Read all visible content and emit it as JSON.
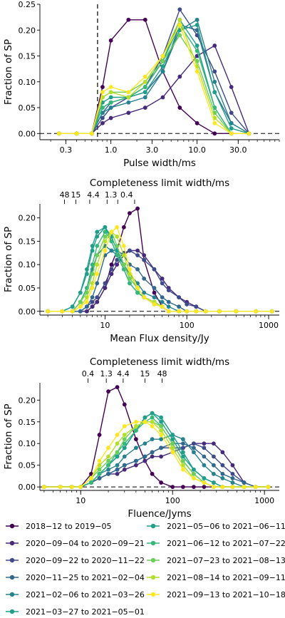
{
  "colors": [
    "#440154",
    "#472A7A",
    "#3E4A89",
    "#31688E",
    "#26828E",
    "#1F9E89",
    "#35B779",
    "#6DCD59",
    "#B4DE2C",
    "#FDE725"
  ],
  "legend": {
    "entries": [
      "2018−12 to 2019−05",
      "2020−09−04 to 2020−09−21",
      "2020−09−22 to 2020−11−22",
      "2020−11−25 to 2021−02−04",
      "2021−02−06 to 2021−03−26",
      "2021−03−27 to 2021−05−01",
      "2021−05−06 to 2021−06−11",
      "2021−06−12 to 2021−07−22",
      "2021−07−23 to 2021−08−13",
      "2021−08−14 to 2021−09−11",
      "2021−09−13 to 2021−10−18"
    ],
    "color_index": [
      0,
      1,
      2,
      3,
      4,
      5,
      5,
      6,
      7,
      8,
      9
    ]
  },
  "chart_data": [
    {
      "type": "line",
      "xlabel": "Pulse width/ms",
      "ylabel": "Fraction of SP",
      "xscale": "log",
      "xlim": [
        0.15,
        90
      ],
      "ylim": [
        -0.012,
        0.25
      ],
      "xticks": [
        0.3,
        1.0,
        3.0,
        10.0,
        30.0
      ],
      "xtick_labels": [
        "0.3",
        "1.0",
        "3.0",
        "10.0",
        "30.0"
      ],
      "yticks": [
        0,
        0.05,
        0.1,
        0.15,
        0.2,
        0.25
      ],
      "ytick_labels": [
        "0.00",
        "0.05",
        "0.10",
        "0.15",
        "0.20",
        "0.25"
      ],
      "vline_x": 0.7,
      "x": [
        0.25,
        0.4,
        0.6,
        0.8,
        1.0,
        1.6,
        2.5,
        4.0,
        6.3,
        10.0,
        16.0,
        25.0,
        40.0
      ],
      "series": [
        {
          "values": [
            0,
            0,
            0,
            0.09,
            0.18,
            0.22,
            0.22,
            0.12,
            0.05,
            0.02,
            0,
            0,
            0
          ]
        },
        {
          "values": [
            0,
            0,
            0,
            0.02,
            0.03,
            0.04,
            0.05,
            0.07,
            0.11,
            0.15,
            0.17,
            0.09,
            0
          ]
        },
        {
          "values": [
            0,
            0,
            0,
            0.03,
            0.05,
            0.07,
            0.09,
            0.15,
            0.24,
            0.19,
            0.12,
            0.04,
            0
          ]
        },
        {
          "values": [
            0,
            0,
            0,
            0.04,
            0.06,
            0.07,
            0.08,
            0.12,
            0.21,
            0.2,
            0.08,
            0.02,
            0
          ]
        },
        {
          "values": [
            0,
            0,
            0,
            0.04,
            0.05,
            0.06,
            0.07,
            0.12,
            0.2,
            0.22,
            0.1,
            0.02,
            0
          ]
        },
        {
          "values": [
            0,
            0,
            0,
            0.05,
            0.06,
            0.07,
            0.08,
            0.13,
            0.2,
            0.21,
            0.08,
            0.01,
            0
          ]
        },
        {
          "values": [
            0,
            0,
            0,
            0.06,
            0.07,
            0.07,
            0.09,
            0.14,
            0.22,
            0.17,
            0.05,
            0,
            0
          ]
        },
        {
          "values": [
            0,
            0,
            0,
            0.05,
            0.06,
            0.07,
            0.09,
            0.14,
            0.21,
            0.16,
            0.05,
            0,
            0
          ]
        },
        {
          "values": [
            0,
            0,
            0,
            0.07,
            0.08,
            0.08,
            0.1,
            0.14,
            0.19,
            0.14,
            0.04,
            0,
            0
          ]
        },
        {
          "values": [
            0,
            0,
            0,
            0.07,
            0.08,
            0.07,
            0.1,
            0.15,
            0.22,
            0.13,
            0.03,
            0,
            0
          ]
        },
        {
          "values": [
            0,
            0,
            0,
            0.08,
            0.09,
            0.08,
            0.11,
            0.15,
            0.21,
            0.12,
            0.02,
            0,
            0
          ]
        }
      ]
    },
    {
      "type": "line",
      "title": "Completeness limit width/ms",
      "xlabel": "Mean Flux density/Jy",
      "ylabel": "Fraction of SP",
      "xscale": "log",
      "xlim": [
        1.6,
        1350
      ],
      "ylim": [
        -0.008,
        0.23
      ],
      "xticks": [
        10,
        100,
        1000
      ],
      "xtick_labels": [
        "10",
        "100",
        "1000"
      ],
      "yticks": [
        0,
        0.05,
        0.1,
        0.15,
        0.2
      ],
      "ytick_labels": [
        "0.00",
        "0.05",
        "0.10",
        "0.15",
        "0.20"
      ],
      "top_ticks": [
        3.2,
        4.4,
        6.5,
        10.6,
        14.3,
        23
      ],
      "top_tick_labels": [
        "48",
        "15",
        "4.4",
        "1.3",
        "0.4"
      ],
      "top_tick_label_x": [
        3.2,
        4.4,
        7.2,
        11.8,
        18.4
      ],
      "x": [
        2,
        3,
        4,
        5,
        6,
        7,
        8,
        10,
        12,
        14,
        17,
        20,
        25,
        30,
        40,
        50,
        60,
        80,
        100,
        130,
        170,
        250,
        400,
        700,
        1100
      ],
      "series": [
        {
          "values": [
            0,
            0,
            0,
            0,
            0,
            0.01,
            0.02,
            0.05,
            0.1,
            0.13,
            0.18,
            0.21,
            0.22,
            0.11,
            0.04,
            0.01,
            0,
            0,
            0,
            0,
            0,
            0,
            0,
            0,
            0
          ]
        },
        {
          "values": [
            0,
            0,
            0,
            0,
            0,
            0.01,
            0.02,
            0.05,
            0.08,
            0.1,
            0.12,
            0.13,
            0.13,
            0.12,
            0.09,
            0.07,
            0.05,
            0.03,
            0.02,
            0.01,
            0,
            0,
            0,
            0,
            0
          ]
        },
        {
          "values": [
            0,
            0,
            0,
            0,
            0.01,
            0.02,
            0.03,
            0.06,
            0.09,
            0.11,
            0.125,
            0.13,
            0.12,
            0.11,
            0.09,
            0.06,
            0.045,
            0.03,
            0.015,
            0.01,
            0,
            0,
            0,
            0,
            0
          ]
        },
        {
          "values": [
            0,
            0,
            0,
            0,
            0.01,
            0.03,
            0.06,
            0.12,
            0.13,
            0.13,
            0.12,
            0.1,
            0.09,
            0.07,
            0.05,
            0.03,
            0.02,
            0.01,
            0,
            0,
            0,
            0,
            0,
            0,
            0
          ]
        },
        {
          "values": [
            0,
            0,
            0,
            0.02,
            0.05,
            0.09,
            0.12,
            0.14,
            0.13,
            0.12,
            0.1,
            0.08,
            0.06,
            0.04,
            0.03,
            0.02,
            0.01,
            0,
            0,
            0,
            0,
            0,
            0,
            0,
            0
          ]
        },
        {
          "values": [
            0,
            0,
            0.01,
            0.04,
            0.09,
            0.14,
            0.17,
            0.18,
            0.16,
            0.13,
            0.1,
            0.07,
            0.05,
            0.03,
            0.02,
            0.01,
            0,
            0,
            0,
            0,
            0,
            0,
            0,
            0,
            0
          ]
        },
        {
          "values": [
            0,
            0,
            0.01,
            0.04,
            0.08,
            0.13,
            0.16,
            0.18,
            0.15,
            0.12,
            0.09,
            0.06,
            0.04,
            0.03,
            0.02,
            0.01,
            0,
            0,
            0,
            0,
            0,
            0,
            0,
            0,
            0
          ]
        },
        {
          "values": [
            0,
            0,
            0,
            0.02,
            0.05,
            0.1,
            0.14,
            0.17,
            0.15,
            0.12,
            0.09,
            0.06,
            0.04,
            0.03,
            0.015,
            0.01,
            0,
            0,
            0,
            0,
            0,
            0,
            0,
            0,
            0
          ]
        },
        {
          "values": [
            0,
            0,
            0,
            0.02,
            0.04,
            0.08,
            0.12,
            0.16,
            0.17,
            0.14,
            0.1,
            0.07,
            0.05,
            0.03,
            0.02,
            0.01,
            0,
            0,
            0,
            0,
            0,
            0,
            0,
            0,
            0
          ]
        },
        {
          "values": [
            0,
            0,
            0,
            0.01,
            0.03,
            0.06,
            0.1,
            0.15,
            0.17,
            0.16,
            0.12,
            0.08,
            0.05,
            0.03,
            0.02,
            0.01,
            0,
            0,
            0,
            0,
            0,
            0,
            0,
            0,
            0
          ]
        },
        {
          "values": [
            0,
            0,
            0,
            0.01,
            0.02,
            0.05,
            0.08,
            0.13,
            0.17,
            0.18,
            0.14,
            0.09,
            0.05,
            0.03,
            0.015,
            0.01,
            0,
            0,
            0,
            0,
            0,
            0,
            0,
            0,
            0
          ]
        }
      ]
    },
    {
      "type": "line",
      "title": "Completeness limit width/ms",
      "xlabel": "Fluence/Jyms",
      "ylabel": "Fraction of SP",
      "xscale": "log",
      "xlim": [
        3.6,
        1450
      ],
      "ylim": [
        -0.008,
        0.24
      ],
      "xticks": [
        10,
        100,
        1000
      ],
      "xtick_labels": [
        "10",
        "100",
        "1000"
      ],
      "yticks": [
        0,
        0.05,
        0.1,
        0.15,
        0.2
      ],
      "ytick_labels": [
        "0.00",
        "0.05",
        "0.10",
        "0.15",
        "0.20"
      ],
      "top_ticks": [
        12,
        19,
        29,
        50,
        77
      ],
      "top_tick_labels": [
        "0.4",
        "1.3",
        "4.4",
        "15",
        "48"
      ],
      "top_tick_label_x": [
        12,
        19,
        29,
        50,
        77
      ],
      "x": [
        4,
        6,
        8,
        10,
        13,
        16,
        20,
        25,
        30,
        40,
        50,
        60,
        75,
        100,
        130,
        170,
        220,
        280,
        350,
        450,
        600,
        800,
        1100
      ],
      "series": [
        {
          "values": [
            0,
            0,
            0,
            0,
            0.03,
            0.12,
            0.22,
            0.23,
            0.19,
            0.11,
            0.06,
            0.03,
            0.01,
            0,
            0,
            0,
            0,
            0,
            0,
            0,
            0,
            0,
            0
          ]
        },
        {
          "values": [
            0,
            0,
            0,
            0,
            0.01,
            0.02,
            0.03,
            0.03,
            0.04,
            0.05,
            0.06,
            0.07,
            0.07,
            0.08,
            0.09,
            0.1,
            0.1,
            0.1,
            0.08,
            0.05,
            0.01,
            0,
            0
          ]
        },
        {
          "values": [
            0,
            0,
            0,
            0,
            0.01,
            0.02,
            0.03,
            0.04,
            0.05,
            0.06,
            0.07,
            0.08,
            0.09,
            0.09,
            0.09,
            0.1,
            0.09,
            0.07,
            0.05,
            0.03,
            0.01,
            0,
            0
          ]
        },
        {
          "values": [
            0,
            0,
            0,
            0,
            0.01,
            0.02,
            0.03,
            0.04,
            0.05,
            0.06,
            0.07,
            0.08,
            0.09,
            0.1,
            0.1,
            0.09,
            0.07,
            0.05,
            0.03,
            0.02,
            0.01,
            0,
            0
          ]
        },
        {
          "values": [
            0,
            0,
            0,
            0,
            0.01,
            0.03,
            0.04,
            0.05,
            0.07,
            0.09,
            0.1,
            0.11,
            0.11,
            0.12,
            0.11,
            0.08,
            0.05,
            0.03,
            0.02,
            0.01,
            0,
            0,
            0
          ]
        },
        {
          "values": [
            0,
            0,
            0,
            0,
            0.01,
            0.03,
            0.05,
            0.07,
            0.09,
            0.13,
            0.16,
            0.17,
            0.16,
            0.12,
            0.08,
            0.04,
            0.02,
            0.01,
            0,
            0,
            0,
            0,
            0
          ]
        },
        {
          "values": [
            0,
            0,
            0,
            0,
            0.01,
            0.03,
            0.05,
            0.07,
            0.09,
            0.13,
            0.16,
            0.17,
            0.15,
            0.11,
            0.07,
            0.04,
            0.02,
            0.01,
            0,
            0,
            0,
            0,
            0
          ]
        },
        {
          "values": [
            0,
            0,
            0,
            0,
            0.01,
            0.03,
            0.05,
            0.08,
            0.1,
            0.13,
            0.15,
            0.16,
            0.14,
            0.1,
            0.06,
            0.03,
            0.01,
            0,
            0,
            0,
            0,
            0,
            0
          ]
        },
        {
          "values": [
            0,
            0,
            0,
            0,
            0.02,
            0.04,
            0.06,
            0.08,
            0.11,
            0.14,
            0.15,
            0.15,
            0.14,
            0.1,
            0.06,
            0.03,
            0.01,
            0,
            0,
            0,
            0,
            0,
            0
          ]
        },
        {
          "values": [
            0,
            0,
            0,
            0,
            0.02,
            0.05,
            0.07,
            0.1,
            0.12,
            0.14,
            0.15,
            0.15,
            0.13,
            0.09,
            0.05,
            0.02,
            0.01,
            0,
            0,
            0,
            0,
            0,
            0
          ]
        },
        {
          "values": [
            0,
            0,
            0,
            0,
            0.02,
            0.06,
            0.09,
            0.12,
            0.14,
            0.15,
            0.15,
            0.14,
            0.12,
            0.08,
            0.04,
            0.02,
            0.01,
            0,
            0,
            0,
            0,
            0,
            0
          ]
        }
      ]
    }
  ]
}
